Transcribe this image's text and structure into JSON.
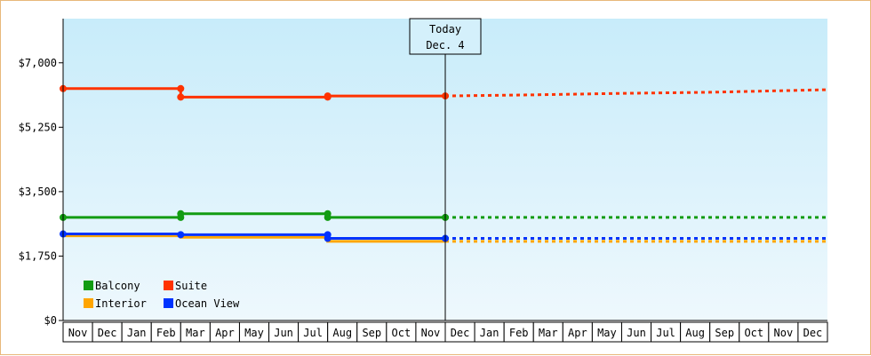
{
  "chart_data": {
    "type": "line",
    "title": "",
    "xlabel": "",
    "ylabel": "",
    "ylim": [
      0,
      8200
    ],
    "y_ticks": [
      {
        "value": 0,
        "label": "$0"
      },
      {
        "value": 1750,
        "label": "$1,750"
      },
      {
        "value": 3500,
        "label": "$3,500"
      },
      {
        "value": 5250,
        "label": "$5,250"
      },
      {
        "value": 7000,
        "label": "$7,000"
      }
    ],
    "x_ticks": [
      "Nov",
      "Dec",
      "Jan",
      "Feb",
      "Mar",
      "Apr",
      "May",
      "Jun",
      "Jul",
      "Aug",
      "Sep",
      "Oct",
      "Nov",
      "Dec",
      "Jan",
      "Feb",
      "Mar",
      "Apr",
      "May",
      "Jun",
      "Jul",
      "Aug",
      "Sep",
      "Oct",
      "Nov",
      "Dec"
    ],
    "today_marker": {
      "line1": "Today",
      "line2": "Dec. 4",
      "x": 13
    },
    "background_gradient": [
      "#c8ecfa",
      "#eef8fd"
    ],
    "grid": false,
    "legend_position": "bottom-left",
    "series": [
      {
        "name": "Balcony",
        "color": "#129c12",
        "points": [
          [
            0,
            2800
          ],
          [
            4,
            2800
          ],
          [
            4,
            2900
          ],
          [
            9,
            2900
          ],
          [
            9,
            2800
          ],
          [
            13,
            2800
          ]
        ],
        "forecast": [
          [
            13,
            2800
          ],
          [
            26,
            2800
          ]
        ]
      },
      {
        "name": "Suite",
        "color": "#ff3300",
        "points": [
          [
            0,
            6300
          ],
          [
            4,
            6300
          ],
          [
            4,
            6070
          ],
          [
            9,
            6070
          ],
          [
            9,
            6100
          ],
          [
            13,
            6100
          ]
        ],
        "forecast": [
          [
            13,
            6100
          ],
          [
            16,
            6130
          ],
          [
            19,
            6170
          ],
          [
            22,
            6200
          ],
          [
            26,
            6270
          ]
        ]
      },
      {
        "name": "Interior",
        "color": "#ffa500",
        "points": [
          [
            0,
            2300
          ],
          [
            4,
            2300
          ],
          [
            4,
            2260
          ],
          [
            9,
            2260
          ],
          [
            9,
            2150
          ],
          [
            13,
            2150
          ]
        ],
        "forecast": [
          [
            13,
            2150
          ],
          [
            26,
            2150
          ]
        ]
      },
      {
        "name": "Ocean View",
        "color": "#0033ff",
        "points": [
          [
            0,
            2350
          ],
          [
            4,
            2350
          ],
          [
            4,
            2330
          ],
          [
            9,
            2330
          ],
          [
            9,
            2230
          ],
          [
            13,
            2230
          ]
        ],
        "forecast": [
          [
            13,
            2230
          ],
          [
            26,
            2230
          ]
        ]
      }
    ],
    "markers": {
      "Balcony": [
        [
          0,
          2800
        ],
        [
          4,
          2800
        ],
        [
          4,
          2900
        ],
        [
          9,
          2900
        ],
        [
          9,
          2800
        ],
        [
          13,
          2800
        ]
      ],
      "Suite": [
        [
          0,
          6300
        ],
        [
          4,
          6300
        ],
        [
          4,
          6070
        ],
        [
          9,
          6070
        ],
        [
          9,
          6100
        ],
        [
          13,
          6100
        ]
      ],
      "Interior": [],
      "Ocean View": [
        [
          0,
          2350
        ],
        [
          4,
          2330
        ],
        [
          9,
          2330
        ],
        [
          9,
          2230
        ],
        [
          13,
          2230
        ]
      ]
    }
  }
}
